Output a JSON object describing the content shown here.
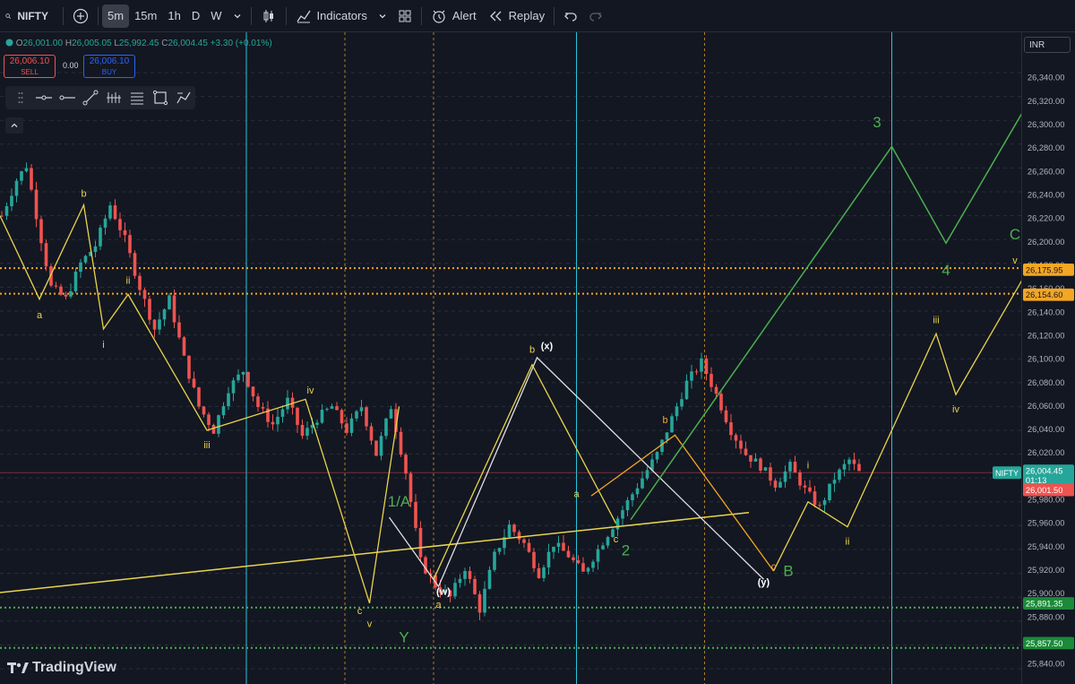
{
  "toolbar": {
    "symbol": "NIFTY",
    "intervals": [
      "5m",
      "15m",
      "1h",
      "D",
      "W"
    ],
    "active_interval": "5m",
    "indicators_label": "Indicators",
    "alert_label": "Alert",
    "replay_label": "Replay"
  },
  "legend": {
    "o_label": "O",
    "o": "26,001.00",
    "h_label": "H",
    "h": "26,005.05",
    "l_label": "L",
    "l": "25,992.45",
    "c_label": "C",
    "c": "26,004.45",
    "change": "+3.30 (+0.01%)"
  },
  "trade": {
    "sell_price": "26,006.10",
    "sell_label": "SELL",
    "spread": "0.00",
    "buy_price": "26,006.10",
    "buy_label": "BUY"
  },
  "currency": "INR",
  "logo_text": "TradingView",
  "colors": {
    "bg": "#131722",
    "up": "#26a69a",
    "down": "#ef5350",
    "wave_yellow": "#e8d44d",
    "wave_green": "#4caf50",
    "wave_orange": "#f5a623",
    "label_green": "#00c853",
    "label_orange": "#f7a21b",
    "label_red": "#e53935"
  },
  "chart_data": {
    "type": "candlestick",
    "symbol": "NIFTY",
    "timeframe": "5m",
    "ylim": [
      25830,
      26350
    ],
    "y_ticks": [
      25840,
      25860,
      25880,
      25900,
      25920,
      25940,
      25960,
      25980,
      26000,
      26020,
      26040,
      26060,
      26080,
      26100,
      26120,
      26140,
      26160,
      26180,
      26200,
      26220,
      26240,
      26260,
      26280,
      26300,
      26320,
      26340
    ],
    "y_tick_labels": [
      "25,840.00",
      "25,860.00",
      "25,880.00",
      "25,900.00",
      "25,920.00",
      "25,940.00",
      "25,960.00",
      "25,980.00",
      "26,000.00",
      "26,020.00",
      "26,040.00",
      "26,060.00",
      "26,080.00",
      "26,100.00",
      "26,120.00",
      "26,140.00",
      "26,160.00",
      "26,180.00",
      "26,200.00",
      "26,220.00",
      "26,240.00",
      "26,260.00",
      "26,280.00",
      "26,300.00",
      "26,320.00",
      "26,340.00"
    ],
    "bar_count": 205,
    "price_path": [
      [
        0,
        26220
      ],
      [
        3,
        26250
      ],
      [
        5,
        26262
      ],
      [
        8,
        26200
      ],
      [
        10,
        26160
      ],
      [
        13,
        26150
      ],
      [
        16,
        26180
      ],
      [
        19,
        26195
      ],
      [
        22,
        26229
      ],
      [
        25,
        26200
      ],
      [
        28,
        26160
      ],
      [
        31,
        26125
      ],
      [
        34,
        26150
      ],
      [
        37,
        26100
      ],
      [
        40,
        26060
      ],
      [
        43,
        26040
      ],
      [
        46,
        26075
      ],
      [
        49,
        26090
      ],
      [
        52,
        26060
      ],
      [
        55,
        26045
      ],
      [
        58,
        26065
      ],
      [
        61,
        26035
      ],
      [
        64,
        26050
      ],
      [
        67,
        26060
      ],
      [
        70,
        26040
      ],
      [
        73,
        26060
      ],
      [
        76,
        26020
      ],
      [
        79,
        26060
      ],
      [
        82,
        26005
      ],
      [
        85,
        25930
      ],
      [
        88,
        25910
      ],
      [
        91,
        25900
      ],
      [
        94,
        25925
      ],
      [
        97,
        25890
      ],
      [
        100,
        25935
      ],
      [
        103,
        25960
      ],
      [
        106,
        25945
      ],
      [
        109,
        25920
      ],
      [
        112,
        25945
      ],
      [
        115,
        25935
      ],
      [
        118,
        25920
      ],
      [
        121,
        25940
      ],
      [
        124,
        25960
      ],
      [
        127,
        25980
      ],
      [
        130,
        26000
      ],
      [
        133,
        26020
      ],
      [
        136,
        26050
      ],
      [
        139,
        26080
      ],
      [
        142,
        26097
      ],
      [
        145,
        26070
      ],
      [
        148,
        26040
      ],
      [
        151,
        26020
      ],
      [
        154,
        26010
      ],
      [
        157,
        25995
      ],
      [
        160,
        26010
      ],
      [
        163,
        25990
      ],
      [
        166,
        25975
      ],
      [
        169,
        26000
      ],
      [
        172,
        26015
      ],
      [
        174,
        26004.45
      ]
    ],
    "last_price": 26004.45,
    "last_price_label": "26,004.45",
    "countdown": "01:13",
    "prev_close_label": "26,001.50",
    "horizontal_levels": [
      {
        "price": 26175.95,
        "label": "26,175.95",
        "style": "dotted",
        "color": "#f5a623"
      },
      {
        "price": 26154.6,
        "label": "26,154.60",
        "style": "dotted",
        "color": "#f5a623"
      },
      {
        "price": 25891.35,
        "label": "25,891.35",
        "style": "dotted",
        "color": "#4caf50"
      },
      {
        "price": 25857.5,
        "label": "25,857.50",
        "style": "dotted",
        "color": "#4caf50"
      }
    ],
    "vertical_lines": [
      {
        "bar": 50,
        "style": "solid",
        "color": "#26c6da"
      },
      {
        "bar": 117,
        "style": "solid",
        "color": "#26c6da"
      },
      {
        "bar": 181,
        "style": "solid",
        "color": "#26c6da"
      },
      {
        "bar": 70,
        "style": "dashed",
        "color": "#f5a623"
      },
      {
        "bar": 88,
        "style": "dashed",
        "color": "#f5a623"
      },
      {
        "bar": 143,
        "style": "dashed",
        "color": "#f5a623"
      }
    ],
    "trendline": {
      "points": [
        [
          -2,
          25903
        ],
        [
          152,
          25971
        ]
      ],
      "color": "#e8d44d"
    },
    "wave_yellow_past": {
      "points": [
        [
          0,
          26220
        ],
        [
          8,
          26150
        ],
        [
          17,
          26229
        ],
        [
          21,
          26125
        ],
        [
          26,
          26154
        ],
        [
          42,
          26040
        ],
        [
          62,
          26066
        ],
        [
          75,
          25895
        ],
        [
          81,
          26060
        ]
      ],
      "labels": [
        "a",
        "b",
        "i",
        "ii",
        "iii",
        "iv",
        "c",
        "v"
      ]
    },
    "wave_white_w": {
      "points": [
        [
          79,
          25967
        ],
        [
          89,
          25909
        ],
        [
          109,
          26101
        ],
        [
          155,
          25915
        ]
      ],
      "labels": [
        "(w)",
        "(x)",
        "(y)"
      ]
    },
    "wave_yellow_b": {
      "points": [
        [
          88,
          25915
        ],
        [
          108,
          26095
        ],
        [
          125,
          25962
        ]
      ],
      "labels": [
        "a",
        "b",
        "c"
      ]
    },
    "wave_orange": {
      "points": [
        [
          120,
          25985
        ],
        [
          137,
          26036
        ],
        [
          157,
          25922
        ]
      ],
      "labels": [
        "b",
        "c"
      ]
    },
    "wave_green": {
      "points": [
        [
          128,
          25965
        ],
        [
          181,
          26278
        ],
        [
          192,
          26197
        ],
        [
          208,
          26310
        ]
      ],
      "labels": [
        "1/A",
        "2",
        "3",
        "4",
        "B",
        "C",
        "Y"
      ]
    },
    "wave_yellow_future": {
      "points": [
        [
          157,
          25922
        ],
        [
          164,
          25980
        ],
        [
          172,
          25959
        ],
        [
          190,
          26121
        ],
        [
          194,
          26070
        ],
        [
          208,
          26170
        ]
      ],
      "labels": [
        "i",
        "ii",
        "iii",
        "iv",
        "v"
      ]
    },
    "annotations": [
      {
        "text": "b",
        "x": 17,
        "y": 26236,
        "color": "#e8d44d"
      },
      {
        "text": "a",
        "x": 8,
        "y": 26134,
        "color": "#e8d44d"
      },
      {
        "text": "ii",
        "x": 26,
        "y": 26163,
        "color": "#e8d44d"
      },
      {
        "text": "i",
        "x": 21,
        "y": 26109,
        "color": "#e8d44d"
      },
      {
        "text": "iii",
        "x": 42,
        "y": 26025,
        "color": "#e8d44d"
      },
      {
        "text": "iv",
        "x": 63,
        "y": 26071,
        "color": "#e8d44d"
      },
      {
        "text": "c",
        "x": 73,
        "y": 25886,
        "color": "#e8d44d"
      },
      {
        "text": "v",
        "x": 75,
        "y": 25875,
        "color": "#e8d44d"
      },
      {
        "text": "Y",
        "x": 82,
        "y": 25862,
        "color": "#4caf50"
      },
      {
        "text": "1/A",
        "x": 81,
        "y": 25976,
        "color": "#4caf50"
      },
      {
        "text": "(w)",
        "x": 90,
        "y": 25902,
        "color": "#ffffff"
      },
      {
        "text": "a",
        "x": 89,
        "y": 25891,
        "color": "#e8d44d"
      },
      {
        "text": "b",
        "x": 108,
        "y": 26105,
        "color": "#e8d44d"
      },
      {
        "text": "(x)",
        "x": 111,
        "y": 26108,
        "color": "#ffffff"
      },
      {
        "text": "a",
        "x": 117,
        "y": 25984,
        "color": "#e8d44d"
      },
      {
        "text": "c",
        "x": 125,
        "y": 25946,
        "color": "#e8d44d"
      },
      {
        "text": "2",
        "x": 127,
        "y": 25935,
        "color": "#4caf50"
      },
      {
        "text": "b",
        "x": 135,
        "y": 26046,
        "color": "#f5a623"
      },
      {
        "text": "c",
        "x": 157,
        "y": 25923,
        "color": "#f5a623"
      },
      {
        "text": "(y)",
        "x": 155,
        "y": 25910,
        "color": "#ffffff"
      },
      {
        "text": "B",
        "x": 160,
        "y": 25918,
        "color": "#4caf50"
      },
      {
        "text": "i",
        "x": 164,
        "y": 26008,
        "color": "#e8d44d"
      },
      {
        "text": "ii",
        "x": 172,
        "y": 25944,
        "color": "#e8d44d"
      },
      {
        "text": "3",
        "x": 178,
        "y": 26294,
        "color": "#4caf50"
      },
      {
        "text": "4",
        "x": 192,
        "y": 26170,
        "color": "#4caf50"
      },
      {
        "text": "iii",
        "x": 190,
        "y": 26130,
        "color": "#e8d44d"
      },
      {
        "text": "iv",
        "x": 194,
        "y": 26055,
        "color": "#e8d44d"
      },
      {
        "text": "C",
        "x": 206,
        "y": 26200,
        "color": "#4caf50"
      },
      {
        "text": "v",
        "x": 206,
        "y": 26180,
        "color": "#e8d44d"
      }
    ]
  }
}
